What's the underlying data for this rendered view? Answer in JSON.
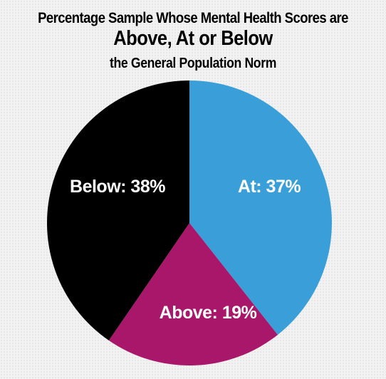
{
  "chart_data": {
    "type": "pie",
    "title": [
      "Percentage Sample Whose Mental Health Scores are",
      "Above, At or Below",
      "the General Population Norm"
    ],
    "start_angle_deg": 0,
    "direction": "clockwise",
    "slices": [
      {
        "label": "At: 37%",
        "category": "At",
        "value": 37,
        "color": "#3a9fd9"
      },
      {
        "label": "Above: 19%",
        "category": "Above",
        "value": 19,
        "color": "#a8176a"
      },
      {
        "label": "Below: 38%",
        "category": "Below",
        "value": 38,
        "color": "#000000"
      }
    ]
  }
}
